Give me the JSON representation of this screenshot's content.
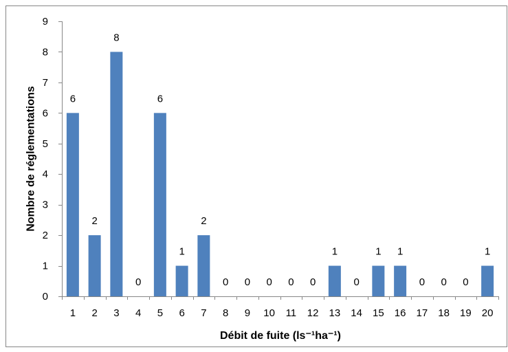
{
  "chart_data": {
    "type": "bar",
    "categories": [
      "1",
      "2",
      "3",
      "4",
      "5",
      "6",
      "7",
      "8",
      "9",
      "10",
      "11",
      "12",
      "13",
      "14",
      "15",
      "16",
      "17",
      "18",
      "19",
      "20"
    ],
    "values": [
      6,
      2,
      8,
      0,
      6,
      1,
      2,
      0,
      0,
      0,
      0,
      0,
      1,
      0,
      1,
      1,
      0,
      0,
      0,
      1
    ],
    "xlabel": "Débit de fuite (ls⁻¹ha⁻¹)",
    "ylabel": "Nombre de réglementations",
    "ylim": [
      0,
      9
    ],
    "yticks": [
      "0",
      "1",
      "2",
      "3",
      "4",
      "5",
      "6",
      "7",
      "8",
      "9"
    ],
    "data_labels": true,
    "grid": false,
    "show_legend": false
  },
  "colors": {
    "bar": "#4F81BD",
    "axis": "#868686",
    "chart_border": "#868686"
  }
}
